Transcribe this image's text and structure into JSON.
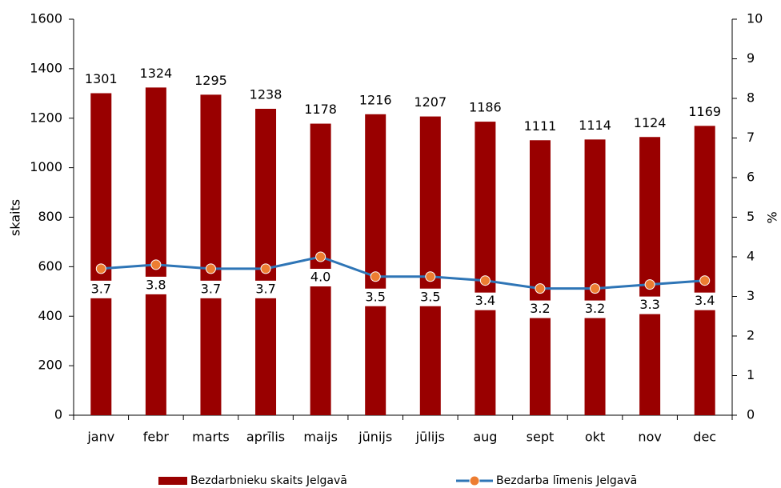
{
  "chart_data": {
    "type": "bar_line",
    "categories": [
      "janv",
      "febr",
      "marts",
      "aprīlis",
      "maijs",
      "jūnijs",
      "jūlijs",
      "aug",
      "sept",
      "okt",
      "nov",
      "dec"
    ],
    "series": [
      {
        "name": "Bezdarbnieku skaits Jelgavā",
        "type": "bar",
        "color": "#990000",
        "values": [
          1301,
          1324,
          1295,
          1238,
          1178,
          1216,
          1207,
          1186,
          1111,
          1114,
          1124,
          1169
        ]
      },
      {
        "name": "Bezdarba līmenis Jelgavā",
        "type": "line",
        "axis": "y2",
        "color": "#2e75b6",
        "marker_color": "#ed7d31",
        "values": [
          3.7,
          3.8,
          3.7,
          3.7,
          4.0,
          3.5,
          3.5,
          3.4,
          3.2,
          3.2,
          3.3,
          3.4
        ],
        "value_labels": [
          "3.7",
          "3.8",
          "3.7",
          "3.7",
          "4.0",
          "3.5",
          "3.5",
          "3.4",
          "3.2",
          "3.2",
          "3.3",
          "3.4"
        ]
      }
    ],
    "ylabel": "skaits",
    "y2label": "%",
    "ylim": [
      0,
      1600
    ],
    "yticks": [
      0,
      200,
      400,
      600,
      800,
      1000,
      1200,
      1400,
      1600
    ],
    "y2lim": [
      0,
      10
    ],
    "y2ticks": [
      0,
      1,
      2,
      3,
      4,
      5,
      6,
      7,
      8,
      9,
      10
    ],
    "legend": "bottom"
  }
}
